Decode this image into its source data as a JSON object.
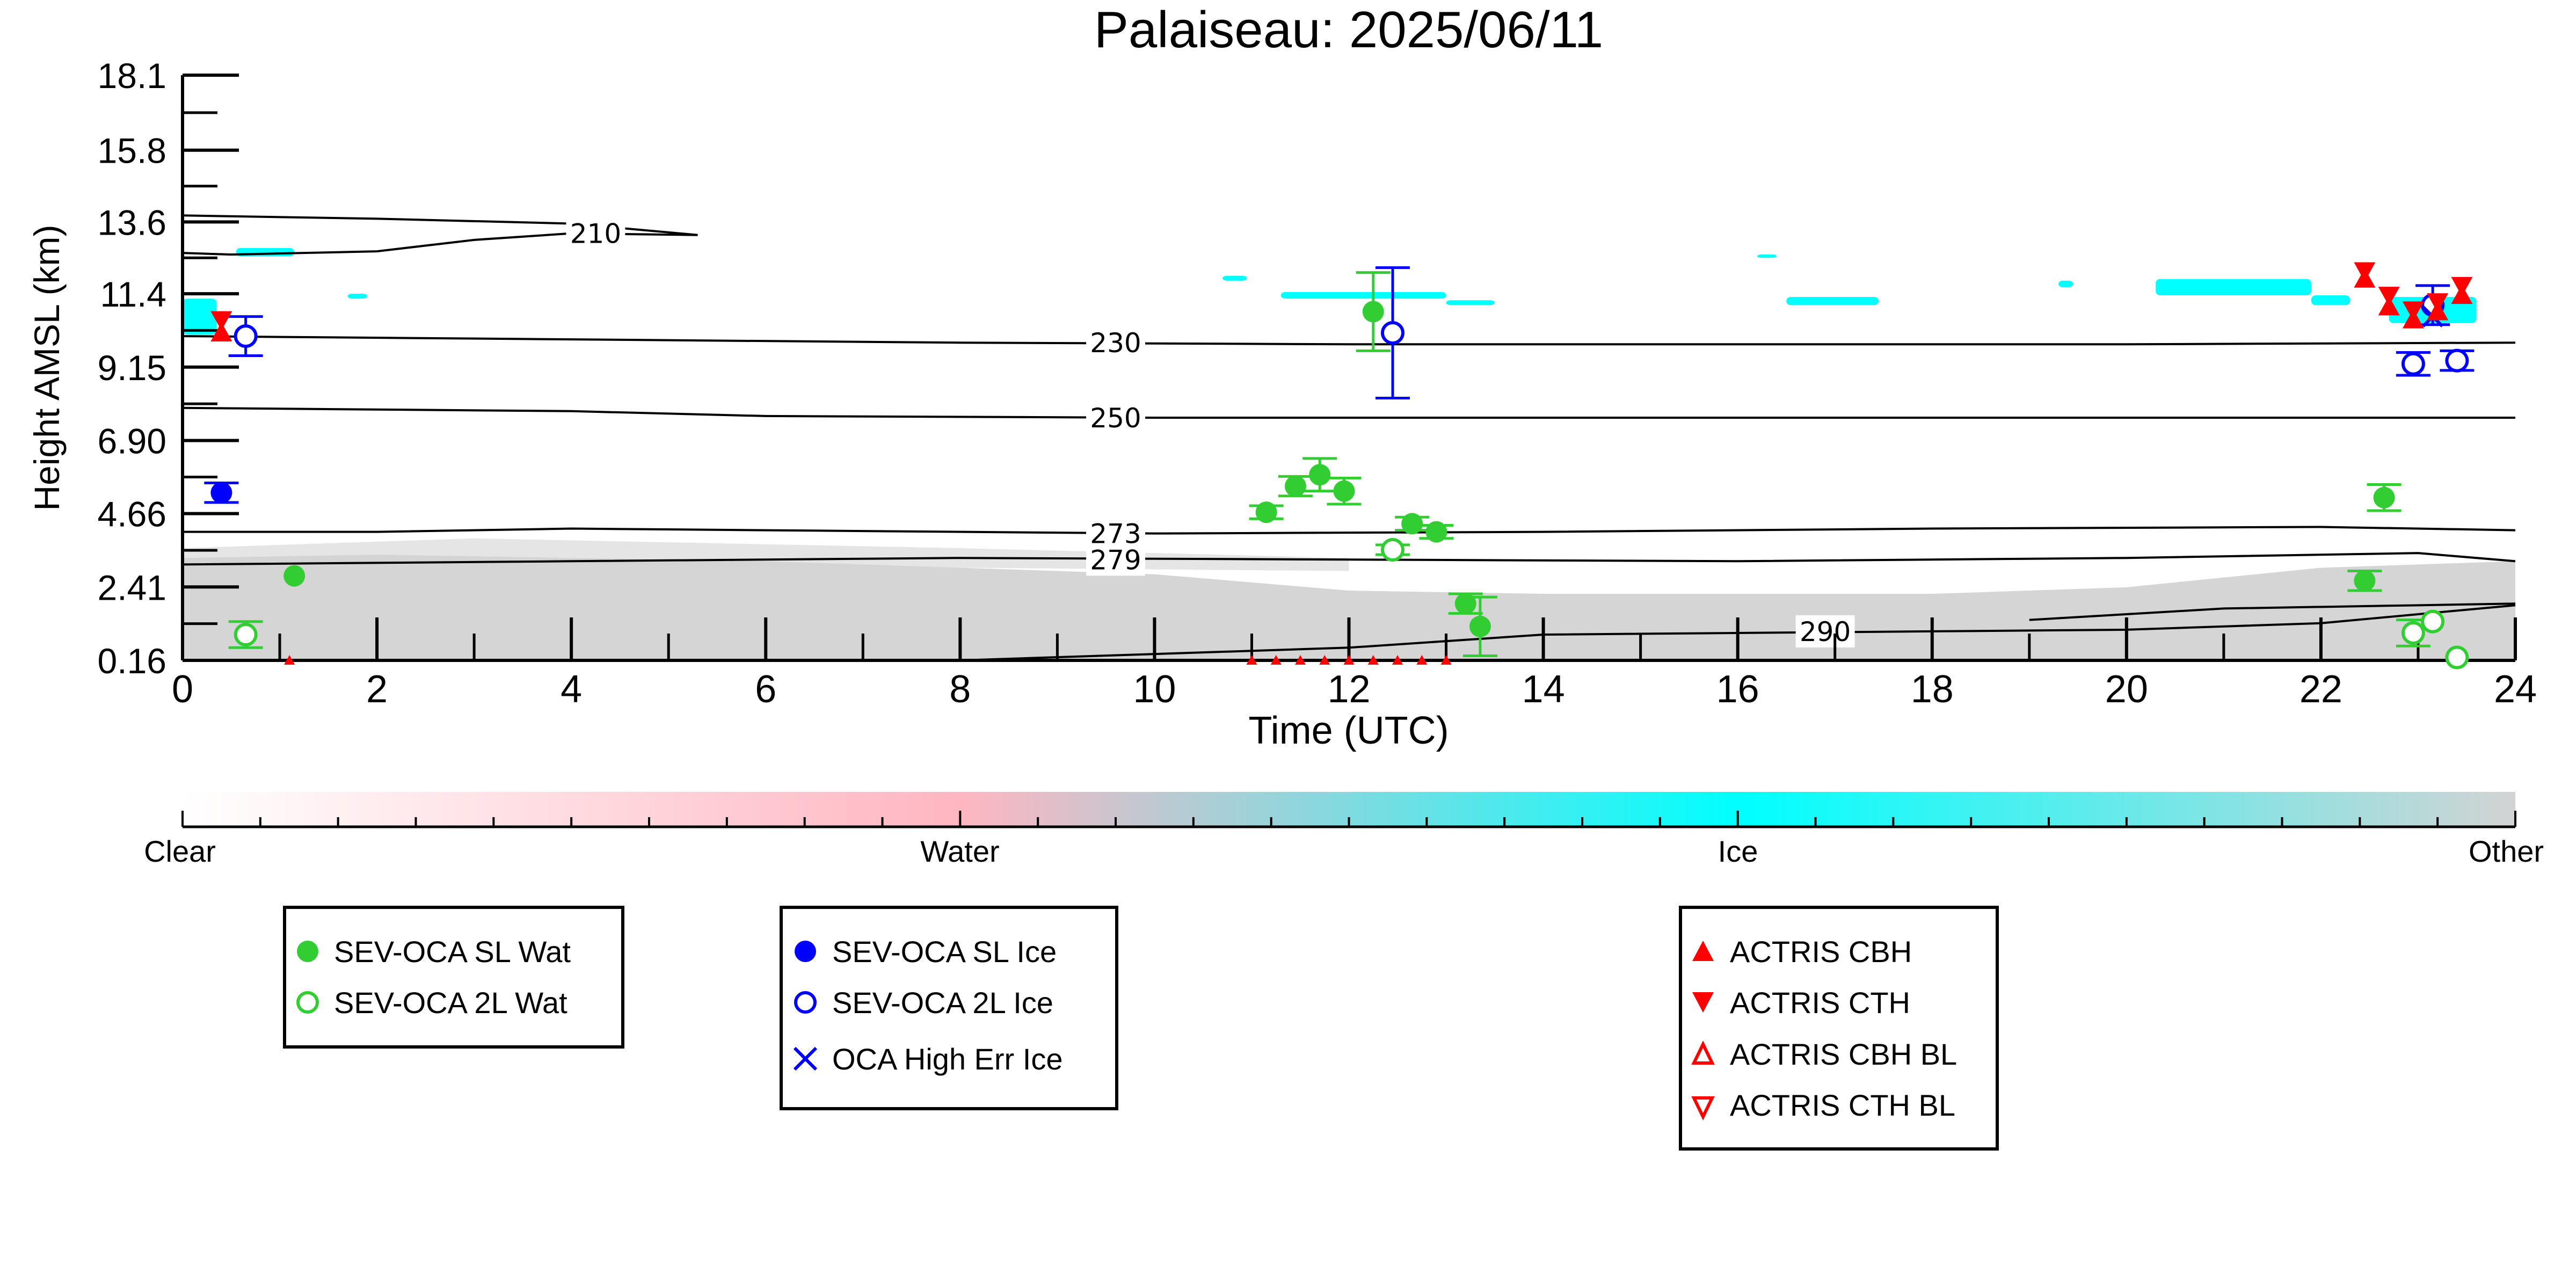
{
  "chart_data": {
    "type": "scatter",
    "title": "Palaiseau: 2025/06/11",
    "xlabel": "Time (UTC)",
    "ylabel": "Height AMSL (km)",
    "xlim": [
      0,
      24
    ],
    "ylim": [
      0.16,
      18.1
    ],
    "x_ticks": [
      "0",
      "2",
      "4",
      "6",
      "8",
      "10",
      "12",
      "14",
      "16",
      "18",
      "20",
      "22",
      "24"
    ],
    "y_ticks": [
      "0.16",
      "2.41",
      "4.66",
      "6.90",
      "9.15",
      "11.4",
      "13.6",
      "15.8",
      "18.1"
    ],
    "grid": false,
    "colorbar": {
      "labels": [
        "Clear",
        "Water",
        "Ice",
        "Other"
      ],
      "colors": [
        "#ffffff",
        "#ffb6c1",
        "#00ffff",
        "#d3d3d3"
      ]
    },
    "temperature_contours": [
      {
        "label": "210",
        "points": [
          [
            0,
            13.8
          ],
          [
            2,
            13.7
          ],
          [
            4,
            13.55
          ],
          [
            5.3,
            13.2
          ],
          [
            4,
            13.25
          ],
          [
            3,
            13.05
          ],
          [
            2,
            12.7
          ],
          [
            0.5,
            12.6
          ],
          [
            0,
            12.65
          ]
        ]
      },
      {
        "label": "230",
        "points": [
          [
            0,
            10.1
          ],
          [
            4,
            10.0
          ],
          [
            8,
            9.9
          ],
          [
            12,
            9.85
          ],
          [
            16,
            9.85
          ],
          [
            20,
            9.85
          ],
          [
            24,
            9.9
          ]
        ]
      },
      {
        "label": "250",
        "points": [
          [
            0,
            7.9
          ],
          [
            4,
            7.8
          ],
          [
            6,
            7.65
          ],
          [
            10,
            7.6
          ],
          [
            16,
            7.6
          ],
          [
            20,
            7.6
          ],
          [
            24,
            7.6
          ]
        ]
      },
      {
        "label": "273",
        "points": [
          [
            0,
            4.1
          ],
          [
            2,
            4.1
          ],
          [
            4,
            4.2
          ],
          [
            6,
            4.15
          ],
          [
            10,
            4.05
          ],
          [
            14,
            4.1
          ],
          [
            18,
            4.2
          ],
          [
            22,
            4.25
          ],
          [
            24,
            4.15
          ]
        ]
      },
      {
        "label": "279",
        "points": [
          [
            0,
            3.1
          ],
          [
            4,
            3.2
          ],
          [
            8,
            3.3
          ],
          [
            12,
            3.25
          ],
          [
            16,
            3.2
          ],
          [
            20,
            3.3
          ],
          [
            23,
            3.45
          ],
          [
            24,
            3.2
          ]
        ]
      },
      {
        "label": "290",
        "points": [
          [
            8,
            0.16
          ],
          [
            12,
            0.55
          ],
          [
            14,
            0.95
          ],
          [
            18,
            1.05
          ],
          [
            20,
            1.1
          ],
          [
            22,
            1.3
          ],
          [
            24,
            1.85
          ]
        ]
      },
      {
        "label": "",
        "points": [
          [
            19,
            1.4
          ],
          [
            21,
            1.75
          ],
          [
            23,
            1.85
          ],
          [
            24,
            1.9
          ]
        ]
      }
    ],
    "series": [
      {
        "name": "SEV-OCA SL Wat",
        "marker": "filled-circle",
        "color": "#32cd32",
        "points": [
          [
            1.15,
            2.75
          ],
          [
            11.15,
            4.7
          ],
          [
            11.45,
            5.5
          ],
          [
            11.7,
            5.85
          ],
          [
            11.95,
            5.35
          ],
          [
            12.25,
            10.85
          ],
          [
            12.65,
            4.35
          ],
          [
            12.9,
            4.1
          ],
          [
            13.2,
            1.9
          ],
          [
            13.35,
            1.2
          ],
          [
            22.45,
            2.6
          ],
          [
            22.65,
            5.15
          ]
        ],
        "error": [
          0,
          0.2,
          0.3,
          0.5,
          0.4,
          1.2,
          0.2,
          0.2,
          0.3,
          0.9,
          0.3,
          0.4
        ]
      },
      {
        "name": "SEV-OCA 2L Wat",
        "marker": "open-circle",
        "color": "#32cd32",
        "points": [
          [
            0.65,
            0.95
          ],
          [
            12.45,
            3.55
          ],
          [
            22.95,
            1.0
          ],
          [
            23.15,
            1.35
          ],
          [
            23.4,
            0.25
          ]
        ],
        "error": [
          0.4,
          0.15,
          0.4,
          0,
          0
        ]
      },
      {
        "name": "SEV-OCA SL Ice",
        "marker": "filled-circle",
        "color": "#0000ff",
        "points": [
          [
            0.4,
            5.3
          ]
        ],
        "error": [
          0.3
        ]
      },
      {
        "name": "SEV-OCA 2L Ice",
        "marker": "open-circle",
        "color": "#0000ff",
        "points": [
          [
            0.65,
            10.1
          ],
          [
            12.45,
            10.2
          ],
          [
            22.95,
            9.25
          ],
          [
            23.15,
            11.05
          ],
          [
            23.4,
            9.35
          ]
        ],
        "error": [
          0.6,
          2.0,
          0.35,
          0.6,
          0.3
        ]
      },
      {
        "name": "OCA High Err Ice",
        "marker": "x",
        "color": "#0000ff",
        "points": [
          [
            23.15,
            10.7
          ]
        ],
        "error": [
          0
        ]
      },
      {
        "name": "ACTRIS CBH",
        "marker": "filled-triangle-up",
        "color": "#ff0000",
        "points": [
          [
            0.4,
            10.2
          ],
          [
            22.45,
            11.85
          ],
          [
            22.7,
            11.0
          ],
          [
            22.95,
            10.6
          ],
          [
            23.2,
            10.85
          ],
          [
            23.45,
            11.35
          ],
          [
            1.1,
            0.16
          ],
          [
            11.0,
            0.16
          ],
          [
            11.25,
            0.16
          ],
          [
            11.5,
            0.16
          ],
          [
            11.75,
            0.16
          ],
          [
            12.0,
            0.16
          ],
          [
            12.25,
            0.16
          ],
          [
            12.5,
            0.16
          ],
          [
            12.75,
            0.16
          ],
          [
            13.0,
            0.16
          ]
        ]
      },
      {
        "name": "ACTRIS CTH",
        "marker": "filled-triangle-down",
        "color": "#ff0000",
        "points": [
          [
            0.4,
            10.6
          ],
          [
            22.45,
            12.1
          ],
          [
            22.7,
            11.35
          ],
          [
            22.95,
            10.9
          ],
          [
            23.2,
            11.15
          ],
          [
            23.45,
            11.65
          ]
        ]
      },
      {
        "name": "ACTRIS CBH BL",
        "marker": "open-triangle-up",
        "color": "#ff0000",
        "points": []
      },
      {
        "name": "ACTRIS CTH BL",
        "marker": "open-triangle-down",
        "color": "#ff0000",
        "points": []
      }
    ],
    "legend_groups": [
      [
        "SEV-OCA SL Wat",
        "SEV-OCA 2L Wat"
      ],
      [
        "SEV-OCA SL Ice",
        "SEV-OCA 2L Ice",
        "OCA High Err Ice"
      ],
      [
        "ACTRIS CBH",
        "ACTRIS CTH",
        "ACTRIS CBH BL",
        "ACTRIS CTH BL"
      ]
    ]
  }
}
